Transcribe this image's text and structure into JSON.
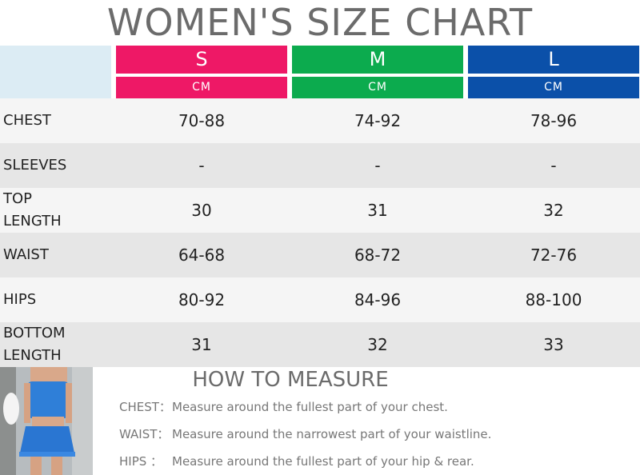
{
  "title": "WOMEN'S SIZE CHART",
  "colors": {
    "s": "#ee1866",
    "m": "#0cab4e",
    "l": "#0b50a9",
    "corner": "#dcecf4",
    "title": "#6b6b6b"
  },
  "sizes": [
    {
      "label": "S",
      "unit": "CM"
    },
    {
      "label": "M",
      "unit": "CM"
    },
    {
      "label": "L",
      "unit": "CM"
    }
  ],
  "rows": [
    {
      "label": "CHEST",
      "values": [
        "70-88",
        "74-92",
        "78-96"
      ]
    },
    {
      "label": "SLEEVES",
      "values": [
        "-",
        "-",
        "-"
      ]
    },
    {
      "label": "TOP LENGTH",
      "values": [
        "30",
        "31",
        "32"
      ]
    },
    {
      "label": "WAIST",
      "values": [
        "64-68",
        "68-72",
        "72-76"
      ]
    },
    {
      "label": "HIPS",
      "values": [
        "80-92",
        "84-96",
        "88-100"
      ]
    },
    {
      "label": "BOTTOM LENGTH",
      "values": [
        "31",
        "32",
        "33"
      ]
    }
  ],
  "how_to_measure": {
    "title": "HOW TO MEASURE",
    "items": [
      {
        "key": "CHEST：",
        "text": "Measure around the fullest part of your chest."
      },
      {
        "key": "WAIST：",
        "text": "Measure around the narrowest part of your waistline."
      },
      {
        "key": "HIPS ：",
        "text": "Measure around the fullest part of your hip & rear."
      }
    ]
  }
}
